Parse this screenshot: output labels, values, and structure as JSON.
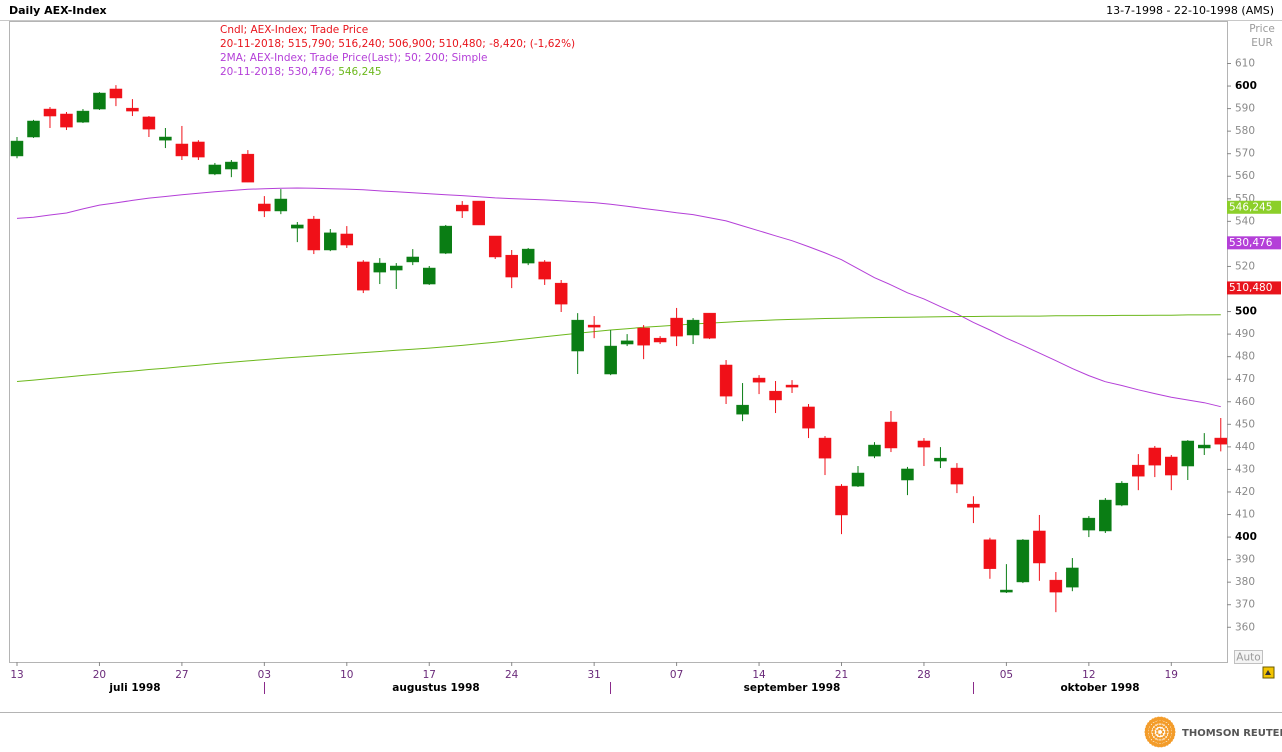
{
  "header": {
    "range": "13-7-1998 - 22-10-1998 (AMS)"
  },
  "axis_header": [
    "Price",
    "EUR"
  ],
  "auto_button": "Auto",
  "footer": {
    "brand": "THOMSON REUTERS"
  },
  "chart_data": {
    "type": "candlestick",
    "title": "Daily AEX-Index",
    "legend": [
      [
        {
          "text": "Cndl; AEX-Index; Trade Price",
          "color": "#e8141c"
        }
      ],
      [
        {
          "text": "20-11-2018; 515,790; 516,240; 506,900; 510,480; -8,420; (-1,62%)",
          "color": "#e8141c"
        }
      ],
      [
        {
          "text": "2MA; AEX-Index; Trade Price(Last);  50; 200; Simple",
          "color": "#b43fd8"
        }
      ],
      [
        {
          "text": "20-11-2018; 530,476;",
          "color": "#b43fd8"
        },
        {
          "text": " 546,245",
          "color": "#6cb81c"
        }
      ]
    ],
    "categories": [
      "13",
      null,
      null,
      null,
      null,
      "20",
      null,
      null,
      null,
      null,
      "27",
      null,
      null,
      null,
      null,
      "03",
      null,
      null,
      null,
      null,
      "10",
      null,
      null,
      null,
      null,
      "17",
      null,
      null,
      null,
      null,
      "24",
      null,
      null,
      null,
      null,
      "31",
      null,
      null,
      null,
      null,
      "07",
      null,
      null,
      null,
      null,
      "14",
      null,
      null,
      null,
      null,
      "21",
      null,
      null,
      null,
      null,
      "28",
      null,
      null,
      null,
      null,
      "05",
      null,
      null,
      null,
      null,
      "12",
      null,
      null,
      null,
      null,
      "19",
      null,
      null,
      null
    ],
    "months": [
      "juli 1998",
      "augustus 1998",
      "september 1998",
      "oktober 1998"
    ],
    "open": [
      569,
      577.4,
      589.8,
      587.6,
      584,
      589.8,
      598.7,
      590.2,
      586.3,
      576,
      574.3,
      575.2,
      561,
      563.2,
      569.8,
      547.7,
      544.6,
      537,
      541,
      527.3,
      534.4,
      522,
      517.5,
      518.4,
      522,
      512.2,
      525.9,
      547.2,
      549,
      533.5,
      525,
      521.5,
      522,
      512.6,
      482.5,
      494,
      472.3,
      485.6,
      492.7,
      488.2,
      497.1,
      489.6,
      499.3,
      476.3,
      454.5,
      470.5,
      464.7,
      467.4,
      457.7,
      443.9,
      422.6,
      422.6,
      435.9,
      451,
      425.3,
      442.6,
      433.7,
      430.6,
      414.6,
      398.8,
      375.6,
      380.1,
      402.7,
      380.9,
      377.8,
      403.1,
      402.7,
      414.2,
      431.9,
      439.5,
      435.5,
      431.5,
      439.5,
      443.9
    ],
    "high": [
      577.4,
      585,
      590.7,
      588.5,
      589.8,
      597.3,
      600.4,
      594.2,
      586.7,
      581.4,
      582.3,
      576,
      565.9,
      567.2,
      571.6,
      551.2,
      554.3,
      539.7,
      542.4,
      536.6,
      537.9,
      522.8,
      523.7,
      521.5,
      527.7,
      520.2,
      538.4,
      549,
      549,
      533.5,
      527.3,
      528.2,
      522.8,
      514,
      499.3,
      498,
      491.8,
      490,
      494,
      489.1,
      501.6,
      497.1,
      499.3,
      478.5,
      468.3,
      471.8,
      469.2,
      469.6,
      459,
      444.8,
      423.5,
      431.5,
      442.1,
      455.9,
      431.1,
      443.9,
      439.9,
      432.8,
      418.1,
      399.7,
      388,
      399.1,
      409.8,
      384.5,
      390.7,
      409.3,
      417.3,
      424.8,
      436.8,
      440.4,
      436.4,
      443,
      446.1,
      452.8
    ],
    "low": [
      568,
      577,
      581.4,
      580.5,
      583.6,
      589.4,
      591.1,
      586.7,
      577.4,
      572.5,
      567.2,
      567.2,
      560.5,
      559.6,
      557.4,
      541.9,
      543.2,
      530.8,
      525.5,
      526.8,
      528.2,
      508.2,
      512.2,
      510,
      520.6,
      511.8,
      525.5,
      541.5,
      538.4,
      523.3,
      510.4,
      520.6,
      511.8,
      499.8,
      472.3,
      488.2,
      471.8,
      484.7,
      478.9,
      485.6,
      484.7,
      485.6,
      487.8,
      459,
      451.4,
      463.4,
      455,
      463.9,
      443.9,
      427.5,
      401.3,
      422.2,
      435,
      437.7,
      418.6,
      431.5,
      430.6,
      419.5,
      406.2,
      381.5,
      375.2,
      379.6,
      380.6,
      366.7,
      376,
      400,
      401.8,
      413.7,
      420.8,
      426.6,
      420.8,
      425.3,
      436.4,
      438
    ],
    "close": [
      575.6,
      584.5,
      586.7,
      581.8,
      588.9,
      596.9,
      594.7,
      588.9,
      580.9,
      577.4,
      569,
      568.5,
      565,
      566.3,
      557.4,
      544.6,
      549.9,
      538.4,
      527.3,
      534.9,
      529.5,
      509.5,
      521.5,
      520.2,
      524.2,
      519.3,
      537.9,
      544.6,
      538.4,
      524.2,
      515.3,
      527.7,
      514.4,
      503.3,
      496.2,
      493.1,
      484.7,
      487,
      485.1,
      486.5,
      489.1,
      496.2,
      488.2,
      462.5,
      458.5,
      468.7,
      460.8,
      466.5,
      448.3,
      435,
      409.8,
      428.4,
      440.8,
      439.5,
      430.2,
      439.9,
      435,
      423.5,
      413.2,
      386,
      376.5,
      398.7,
      388.5,
      375.6,
      386.3,
      408.4,
      416.4,
      423.9,
      427,
      431.9,
      427.5,
      442.6,
      440.8,
      441.2
    ],
    "up_color": "#0a7d14",
    "down_color": "#f01018",
    "moving_averages": [
      {
        "color": "#b43fd8",
        "values": [
          541.3,
          541.8,
          542.8,
          543.7,
          545.5,
          547.2,
          548.2,
          549.3,
          550.3,
          551,
          551.8,
          552.5,
          553.1,
          553.7,
          554.2,
          554.5,
          554.7,
          554.8,
          554.7,
          554.5,
          554.3,
          554,
          553.5,
          553.1,
          552.7,
          552.2,
          551.8,
          551.4,
          550.9,
          550.4,
          550.1,
          549.8,
          549.5,
          549.1,
          548.7,
          548.3,
          547.6,
          546.7,
          545.7,
          544.8,
          543.8,
          543,
          541.6,
          540.2,
          538,
          535.8,
          533.6,
          531.4,
          528.8,
          526,
          523,
          519,
          515,
          511.8,
          508.3,
          505.6,
          502.2,
          499,
          495.2,
          491.8,
          488.2,
          485,
          481.6,
          478.2,
          474.7,
          471.6,
          468.9,
          467.2,
          465.3,
          463.6,
          462,
          460.8,
          459.6,
          457.8
        ]
      },
      {
        "color": "#6cb81c",
        "values": [
          469,
          469.6,
          470.3,
          471,
          471.7,
          472.3,
          473,
          473.6,
          474.3,
          474.9,
          475.6,
          476.2,
          476.9,
          477.5,
          478.1,
          478.7,
          479.3,
          479.8,
          480.3,
          480.8,
          481.3,
          481.8,
          482.3,
          482.8,
          483.3,
          483.8,
          484.4,
          485,
          485.7,
          486.4,
          487.2,
          488,
          488.8,
          489.6,
          490.4,
          491.1,
          491.8,
          492.4,
          493,
          493.5,
          494,
          494.5,
          494.9,
          495.3,
          495.7,
          496,
          496.3,
          496.5,
          496.7,
          496.9,
          497,
          497.2,
          497.3,
          497.4,
          497.5,
          497.6,
          497.7,
          497.8,
          497.8,
          497.9,
          497.9,
          498,
          498,
          498.1,
          498.1,
          498.2,
          498.2,
          498.3,
          498.3,
          498.4,
          498.4,
          498.5,
          498.5,
          498.6
        ]
      }
    ],
    "last_values": [
      {
        "value": 546.245,
        "label": "546,245",
        "color": "#8ccf2a"
      },
      {
        "value": 530.476,
        "label": "530,476",
        "color": "#b43fd8"
      },
      {
        "value": 510.48,
        "label": "510,480",
        "color": "#e8141c"
      }
    ],
    "ylim": [
      344.6,
      628.4
    ],
    "yticks": [
      360,
      370,
      380,
      390,
      400,
      410,
      420,
      430,
      440,
      450,
      460,
      470,
      480,
      490,
      500,
      510,
      520,
      530,
      540,
      550,
      560,
      570,
      580,
      590,
      600,
      610
    ]
  }
}
